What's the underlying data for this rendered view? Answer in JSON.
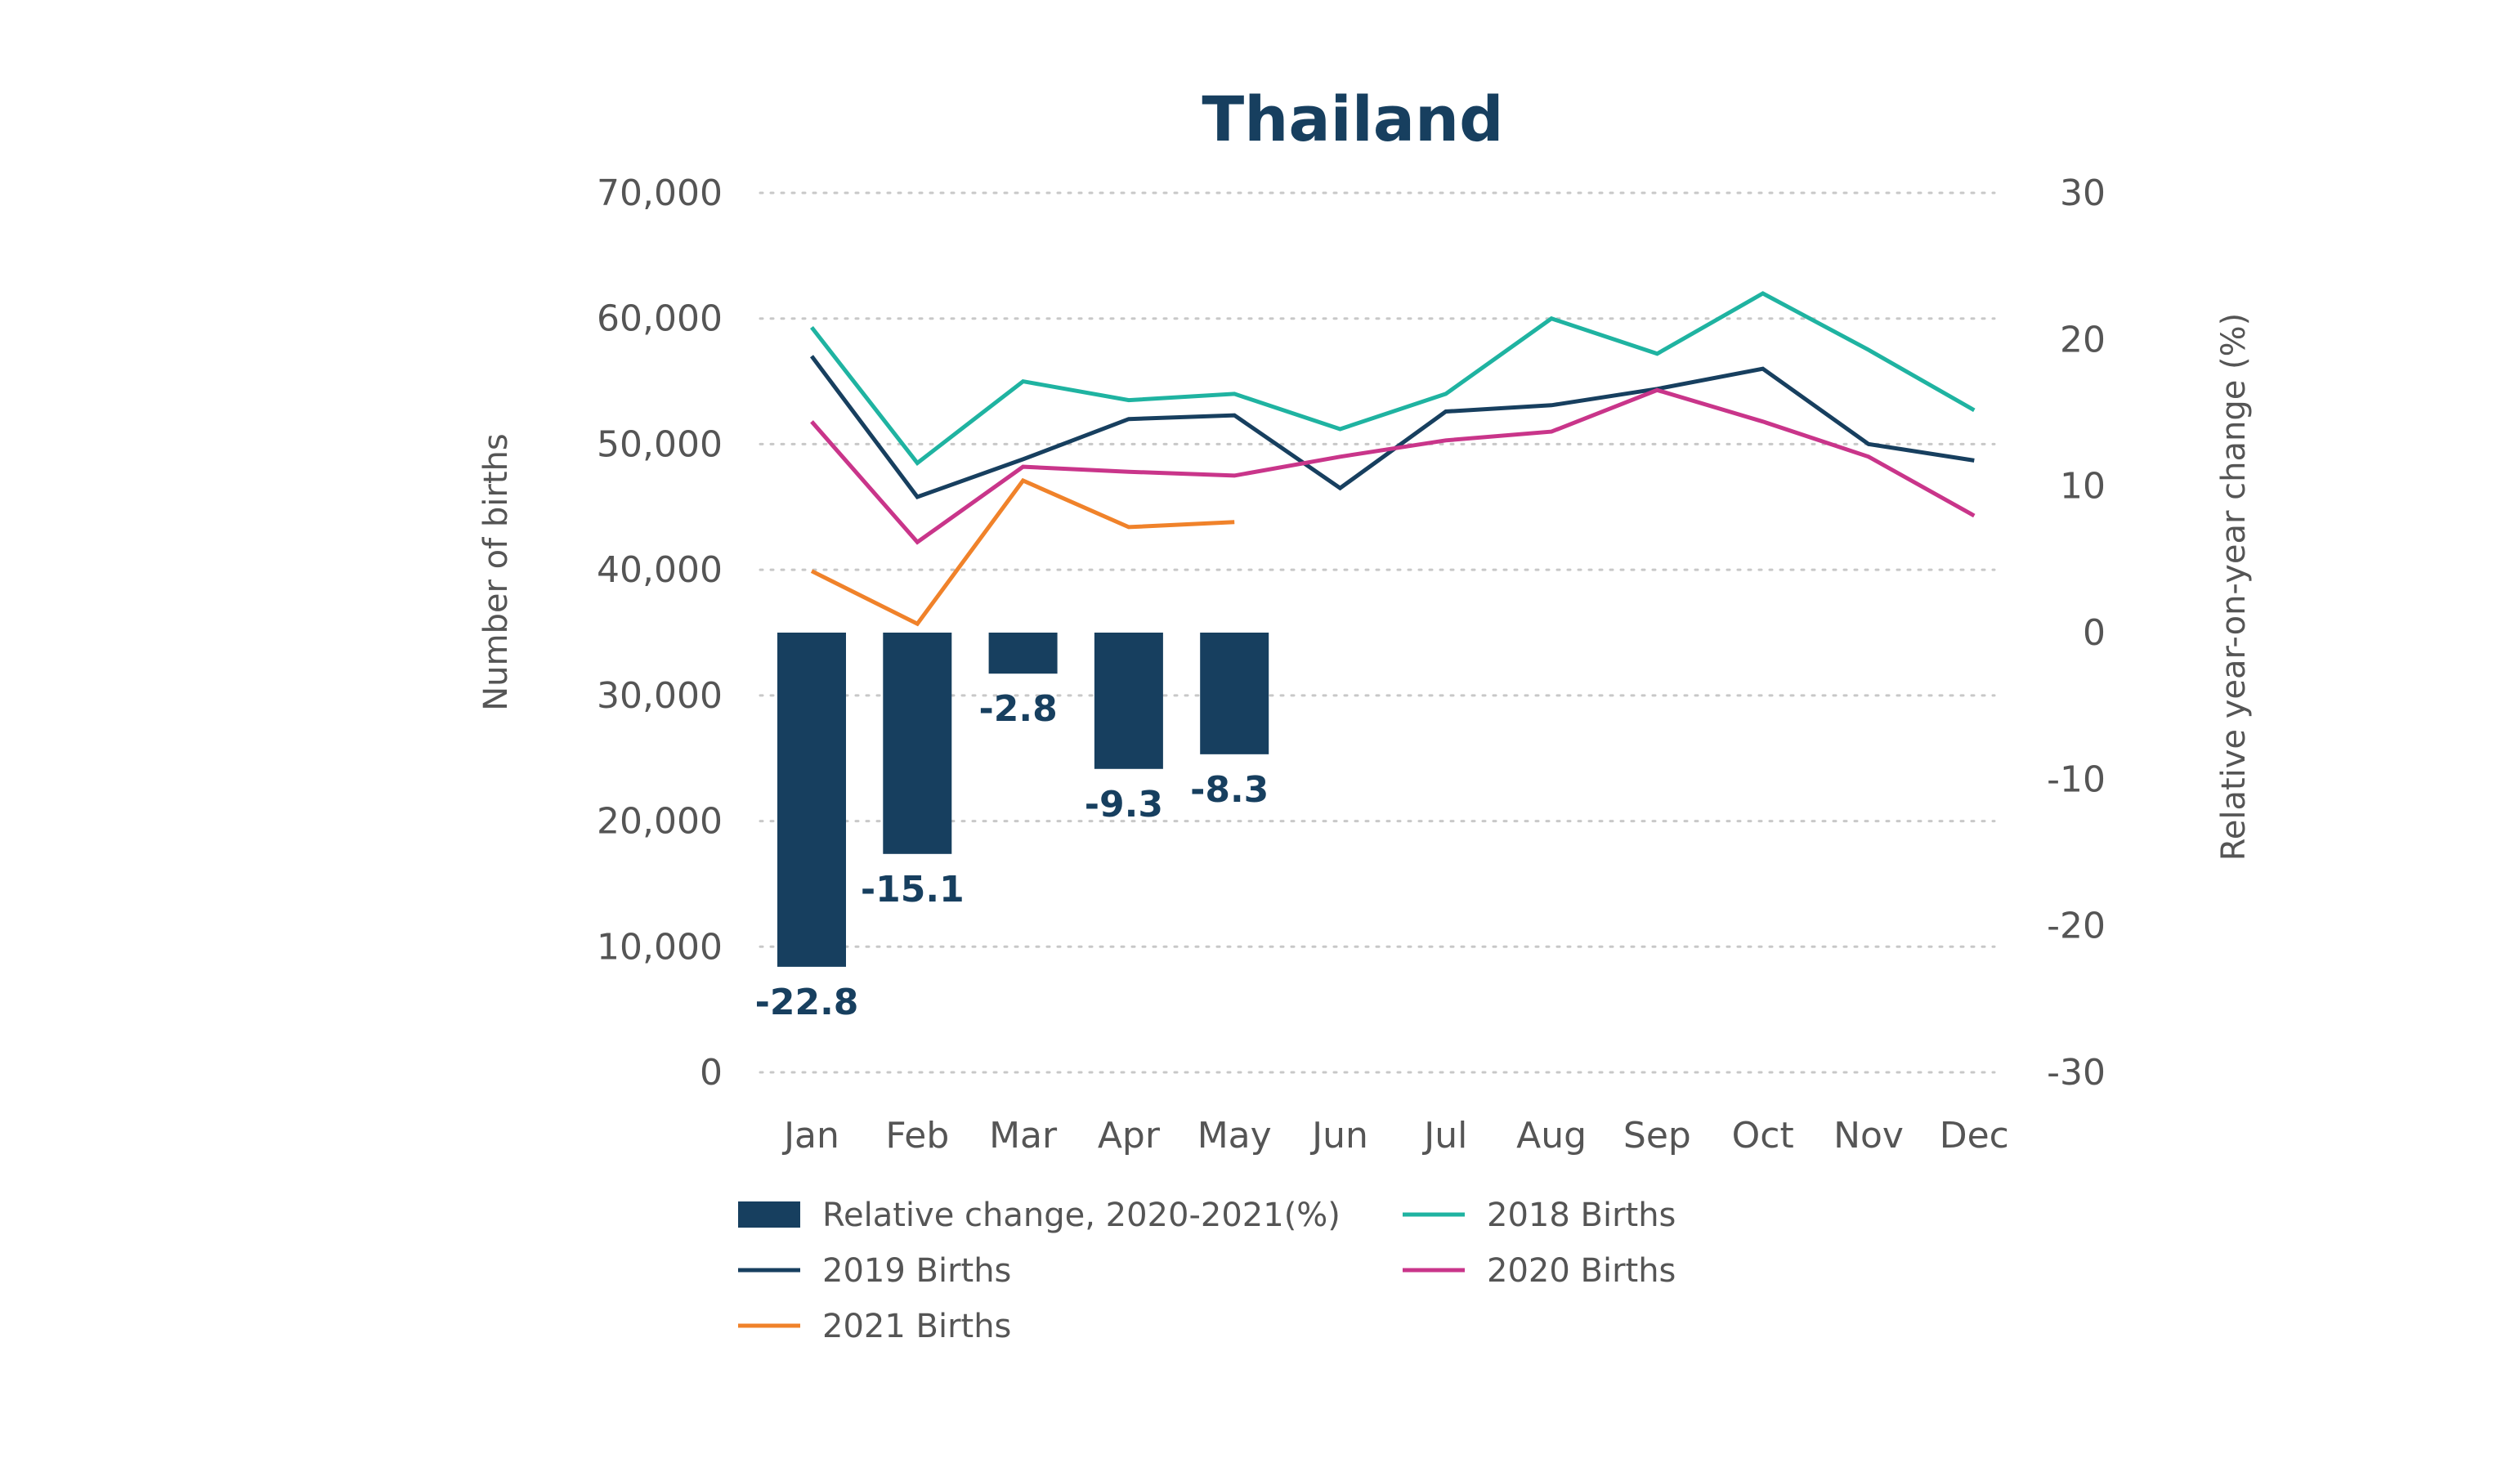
{
  "chart_data": {
    "type": "bar",
    "title": "Thailand",
    "categories": [
      "Jan",
      "Feb",
      "Mar",
      "Apr",
      "May",
      "Jun",
      "Jul",
      "Aug",
      "Sep",
      "Oct",
      "Nov",
      "Dec"
    ],
    "y_left": {
      "label": "Number of births",
      "lim": [
        0,
        70000
      ],
      "ticks": [
        0,
        10000,
        20000,
        30000,
        40000,
        50000,
        60000,
        70000
      ],
      "tick_labels": [
        "0",
        "10,000",
        "20,000",
        "30,000",
        "40,000",
        "50,000",
        "60,000",
        "70,000"
      ]
    },
    "y_right": {
      "label": "Relative year-on-year change (%)",
      "lim": [
        -30,
        30
      ],
      "ticks": [
        -30,
        -20,
        -10,
        0,
        10,
        20,
        30
      ],
      "tick_labels": [
        "-30",
        "-20",
        "-10",
        "0",
        "10",
        "20",
        "30"
      ]
    },
    "grid": true,
    "legend_position": "bottom",
    "bars": {
      "name": "Relative change, 2020-2021(%)",
      "axis": "right",
      "color": "#173f5f",
      "values": [
        -22.8,
        -15.1,
        -2.8,
        -9.3,
        -8.3,
        null,
        null,
        null,
        null,
        null,
        null,
        null
      ],
      "labels": [
        "-22.8",
        "-15.1",
        "-2.8",
        "-9.3",
        "-8.3",
        "",
        "",
        "",
        "",
        "",
        "",
        ""
      ]
    },
    "series": [
      {
        "name": "2018 Births",
        "axis": "left",
        "color": "#1fb3a1",
        "values": [
          59300,
          48500,
          55000,
          53500,
          54000,
          51200,
          54000,
          60000,
          57200,
          62000,
          57500,
          52700
        ]
      },
      {
        "name": "2019 Births",
        "axis": "left",
        "color": "#173f5f",
        "values": [
          57000,
          45800,
          48800,
          52000,
          52300,
          46500,
          52600,
          53100,
          54400,
          56000,
          50000,
          48700
        ]
      },
      {
        "name": "2020 Births",
        "axis": "left",
        "color": "#c9358a",
        "values": [
          51800,
          42200,
          48200,
          47800,
          47500,
          49000,
          50300,
          51000,
          54300,
          51800,
          49000,
          44300
        ]
      },
      {
        "name": "2021 Births",
        "axis": "left",
        "color": "#f0822a",
        "values": [
          39900,
          35700,
          47100,
          43400,
          43800,
          null,
          null,
          null,
          null,
          null,
          null,
          null
        ]
      }
    ],
    "legend": [
      {
        "label": "Relative change, 2020-2021(%)",
        "kind": "bar",
        "color": "#173f5f"
      },
      {
        "label": "2018 Births",
        "kind": "line",
        "color": "#1fb3a1"
      },
      {
        "label": "2019 Births",
        "kind": "line",
        "color": "#173f5f"
      },
      {
        "label": "2020 Births",
        "kind": "line",
        "color": "#c9358a"
      },
      {
        "label": "2021 Births",
        "kind": "line",
        "color": "#f0822a"
      }
    ]
  }
}
